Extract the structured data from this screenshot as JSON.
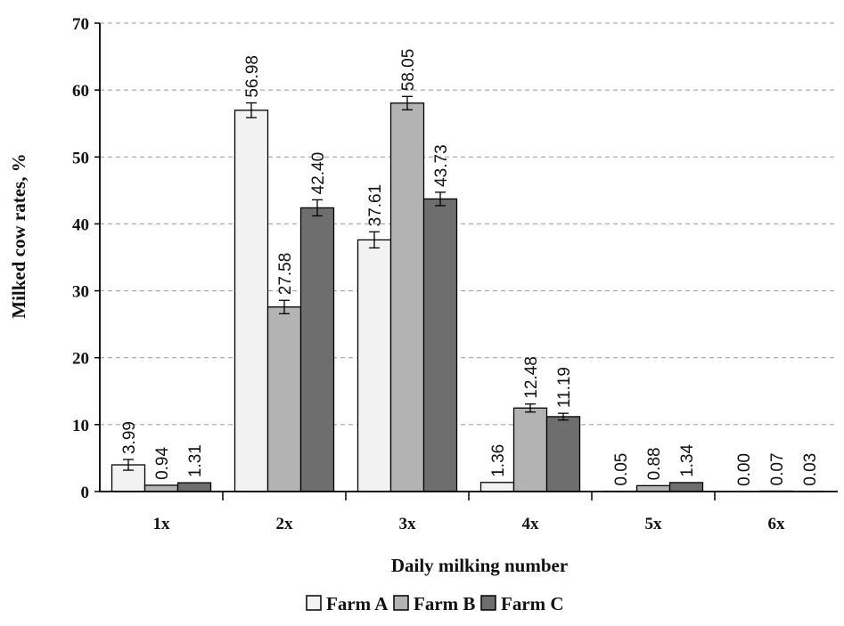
{
  "chart_data": {
    "type": "bar",
    "categories": [
      "1x",
      "2x",
      "3x",
      "4x",
      "5x",
      "6x"
    ],
    "series": [
      {
        "name": "Farm A",
        "color": "#f2f2f2",
        "values": [
          3.99,
          56.98,
          37.61,
          1.36,
          0.05,
          0.0
        ],
        "labels": [
          "3.99",
          "56.98",
          "37.61",
          "1.36",
          "0.05",
          "0.00"
        ],
        "errors": [
          0.8,
          1.1,
          1.2,
          0,
          0,
          0
        ]
      },
      {
        "name": "Farm B",
        "color": "#b3b3b3",
        "values": [
          0.94,
          27.58,
          58.05,
          12.48,
          0.88,
          0.07
        ],
        "labels": [
          "0.94",
          "27.58",
          "58.05",
          "12.48",
          "0.88",
          "0.07"
        ],
        "errors": [
          0,
          1.0,
          1.0,
          0.6,
          0,
          0
        ]
      },
      {
        "name": "Farm C",
        "color": "#6e6e6e",
        "values": [
          1.31,
          42.4,
          43.73,
          11.19,
          1.34,
          0.03
        ],
        "labels": [
          "1.31",
          "42.40",
          "43.73",
          "11.19",
          "1.34",
          "0.03"
        ],
        "errors": [
          0,
          1.2,
          1.0,
          0.5,
          0,
          0
        ]
      }
    ],
    "xlabel": "Daily milking number",
    "ylabel": "Milked cow rates, %",
    "ylim": [
      0,
      70
    ],
    "yticks": [
      0,
      10,
      20,
      30,
      40,
      50,
      60,
      70
    ],
    "grid": true,
    "legend_position": "bottom",
    "error_bars": true
  }
}
